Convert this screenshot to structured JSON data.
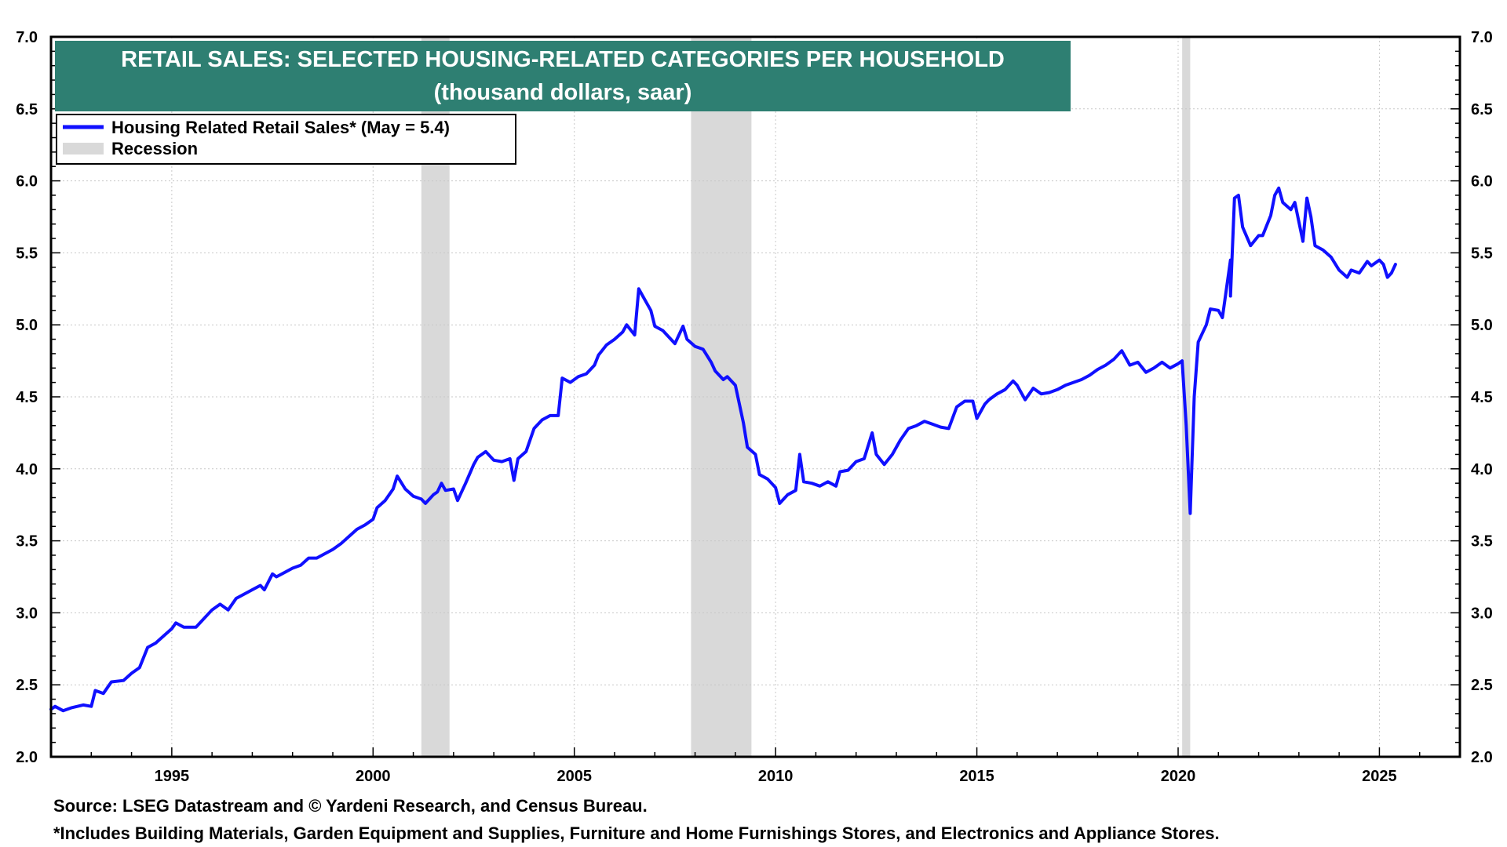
{
  "chart_data": {
    "type": "line",
    "title": "RETAIL SALES: SELECTED HOUSING-RELATED CATEGORIES PER HOUSEHOLD",
    "subtitle": "(thousand dollars, saar)",
    "xlabel": "",
    "ylabel": "",
    "xlim": [
      1992.0,
      2027.0
    ],
    "ylim": [
      2.0,
      7.0
    ],
    "x_ticks": [
      1995,
      2000,
      2005,
      2010,
      2015,
      2020,
      2025
    ],
    "y_ticks": [
      2.0,
      2.5,
      3.0,
      3.5,
      4.0,
      4.5,
      5.0,
      5.5,
      6.0,
      6.5,
      7.0
    ],
    "y_tick_labels": [
      "2.0",
      "2.5",
      "3.0",
      "3.5",
      "4.0",
      "4.5",
      "5.0",
      "5.5",
      "6.0",
      "6.5",
      "7.0"
    ],
    "grid": true,
    "legend_position": "top-left",
    "recession_label": "Recession",
    "recessions": [
      [
        2001.2,
        2001.9
      ],
      [
        2007.9,
        2009.4
      ],
      [
        2020.1,
        2020.3
      ]
    ],
    "series": [
      {
        "name": "Housing Related Retail Sales* (May = 5.4)",
        "color": "#1010ff",
        "points": [
          [
            1992.0,
            2.33
          ],
          [
            1992.1,
            2.35
          ],
          [
            1992.3,
            2.32
          ],
          [
            1992.5,
            2.34
          ],
          [
            1992.8,
            2.36
          ],
          [
            1993.0,
            2.35
          ],
          [
            1993.1,
            2.46
          ],
          [
            1993.3,
            2.44
          ],
          [
            1993.5,
            2.52
          ],
          [
            1993.8,
            2.53
          ],
          [
            1994.0,
            2.58
          ],
          [
            1994.2,
            2.62
          ],
          [
            1994.4,
            2.76
          ],
          [
            1994.6,
            2.79
          ],
          [
            1994.8,
            2.84
          ],
          [
            1995.0,
            2.89
          ],
          [
            1995.1,
            2.93
          ],
          [
            1995.3,
            2.9
          ],
          [
            1995.6,
            2.9
          ],
          [
            1995.8,
            2.96
          ],
          [
            1996.0,
            3.02
          ],
          [
            1996.2,
            3.06
          ],
          [
            1996.4,
            3.02
          ],
          [
            1996.6,
            3.1
          ],
          [
            1996.8,
            3.13
          ],
          [
            1997.0,
            3.16
          ],
          [
            1997.2,
            3.19
          ],
          [
            1997.3,
            3.16
          ],
          [
            1997.5,
            3.27
          ],
          [
            1997.6,
            3.25
          ],
          [
            1997.8,
            3.28
          ],
          [
            1998.0,
            3.31
          ],
          [
            1998.2,
            3.33
          ],
          [
            1998.4,
            3.38
          ],
          [
            1998.6,
            3.38
          ],
          [
            1998.8,
            3.41
          ],
          [
            1999.0,
            3.44
          ],
          [
            1999.2,
            3.48
          ],
          [
            1999.4,
            3.53
          ],
          [
            1999.6,
            3.58
          ],
          [
            1999.8,
            3.61
          ],
          [
            2000.0,
            3.65
          ],
          [
            2000.1,
            3.73
          ],
          [
            2000.3,
            3.78
          ],
          [
            2000.5,
            3.86
          ],
          [
            2000.6,
            3.95
          ],
          [
            2000.8,
            3.86
          ],
          [
            2001.0,
            3.81
          ],
          [
            2001.2,
            3.79
          ],
          [
            2001.3,
            3.76
          ],
          [
            2001.5,
            3.82
          ],
          [
            2001.6,
            3.84
          ],
          [
            2001.7,
            3.9
          ],
          [
            2001.8,
            3.85
          ],
          [
            2002.0,
            3.86
          ],
          [
            2002.1,
            3.78
          ],
          [
            2002.3,
            3.9
          ],
          [
            2002.5,
            4.03
          ],
          [
            2002.6,
            4.08
          ],
          [
            2002.8,
            4.12
          ],
          [
            2003.0,
            4.06
          ],
          [
            2003.2,
            4.05
          ],
          [
            2003.4,
            4.07
          ],
          [
            2003.5,
            3.92
          ],
          [
            2003.6,
            4.07
          ],
          [
            2003.8,
            4.12
          ],
          [
            2004.0,
            4.28
          ],
          [
            2004.2,
            4.34
          ],
          [
            2004.4,
            4.37
          ],
          [
            2004.6,
            4.37
          ],
          [
            2004.7,
            4.63
          ],
          [
            2004.9,
            4.6
          ],
          [
            2005.1,
            4.64
          ],
          [
            2005.3,
            4.66
          ],
          [
            2005.5,
            4.72
          ],
          [
            2005.6,
            4.79
          ],
          [
            2005.8,
            4.86
          ],
          [
            2006.0,
            4.9
          ],
          [
            2006.2,
            4.95
          ],
          [
            2006.3,
            5.0
          ],
          [
            2006.5,
            4.93
          ],
          [
            2006.6,
            5.25
          ],
          [
            2006.7,
            5.2
          ],
          [
            2006.9,
            5.1
          ],
          [
            2007.0,
            4.99
          ],
          [
            2007.2,
            4.96
          ],
          [
            2007.4,
            4.9
          ],
          [
            2007.5,
            4.87
          ],
          [
            2007.7,
            4.99
          ],
          [
            2007.8,
            4.9
          ],
          [
            2008.0,
            4.85
          ],
          [
            2008.2,
            4.83
          ],
          [
            2008.4,
            4.74
          ],
          [
            2008.5,
            4.68
          ],
          [
            2008.7,
            4.62
          ],
          [
            2008.8,
            4.64
          ],
          [
            2009.0,
            4.58
          ],
          [
            2009.2,
            4.32
          ],
          [
            2009.3,
            4.15
          ],
          [
            2009.5,
            4.1
          ],
          [
            2009.6,
            3.96
          ],
          [
            2009.8,
            3.93
          ],
          [
            2010.0,
            3.87
          ],
          [
            2010.1,
            3.76
          ],
          [
            2010.3,
            3.82
          ],
          [
            2010.5,
            3.85
          ],
          [
            2010.6,
            4.1
          ],
          [
            2010.7,
            3.91
          ],
          [
            2010.9,
            3.9
          ],
          [
            2011.1,
            3.88
          ],
          [
            2011.3,
            3.91
          ],
          [
            2011.5,
            3.88
          ],
          [
            2011.6,
            3.98
          ],
          [
            2011.8,
            3.99
          ],
          [
            2012.0,
            4.05
          ],
          [
            2012.2,
            4.07
          ],
          [
            2012.4,
            4.25
          ],
          [
            2012.5,
            4.1
          ],
          [
            2012.7,
            4.03
          ],
          [
            2012.9,
            4.1
          ],
          [
            2013.1,
            4.2
          ],
          [
            2013.3,
            4.28
          ],
          [
            2013.5,
            4.3
          ],
          [
            2013.7,
            4.33
          ],
          [
            2013.9,
            4.31
          ],
          [
            2014.1,
            4.29
          ],
          [
            2014.3,
            4.28
          ],
          [
            2014.5,
            4.43
          ],
          [
            2014.7,
            4.47
          ],
          [
            2014.9,
            4.47
          ],
          [
            2015.0,
            4.35
          ],
          [
            2015.2,
            4.45
          ],
          [
            2015.3,
            4.48
          ],
          [
            2015.5,
            4.52
          ],
          [
            2015.7,
            4.55
          ],
          [
            2015.9,
            4.61
          ],
          [
            2016.0,
            4.58
          ],
          [
            2016.2,
            4.48
          ],
          [
            2016.4,
            4.56
          ],
          [
            2016.6,
            4.52
          ],
          [
            2016.8,
            4.53
          ],
          [
            2017.0,
            4.55
          ],
          [
            2017.2,
            4.58
          ],
          [
            2017.4,
            4.6
          ],
          [
            2017.6,
            4.62
          ],
          [
            2017.8,
            4.65
          ],
          [
            2018.0,
            4.69
          ],
          [
            2018.2,
            4.72
          ],
          [
            2018.4,
            4.76
          ],
          [
            2018.6,
            4.82
          ],
          [
            2018.8,
            4.72
          ],
          [
            2019.0,
            4.74
          ],
          [
            2019.2,
            4.67
          ],
          [
            2019.4,
            4.7
          ],
          [
            2019.6,
            4.74
          ],
          [
            2019.8,
            4.7
          ],
          [
            2020.0,
            4.73
          ],
          [
            2020.1,
            4.75
          ],
          [
            2020.2,
            4.3
          ],
          [
            2020.3,
            3.69
          ],
          [
            2020.4,
            4.5
          ],
          [
            2020.5,
            4.88
          ],
          [
            2020.7,
            5.0
          ],
          [
            2020.8,
            5.11
          ],
          [
            2021.0,
            5.1
          ],
          [
            2021.1,
            5.05
          ],
          [
            2021.3,
            5.45
          ],
          [
            2021.3,
            5.2
          ],
          [
            2021.4,
            5.88
          ],
          [
            2021.5,
            5.9
          ],
          [
            2021.6,
            5.68
          ],
          [
            2021.8,
            5.55
          ],
          [
            2022.0,
            5.62
          ],
          [
            2022.1,
            5.62
          ],
          [
            2022.3,
            5.76
          ],
          [
            2022.4,
            5.9
          ],
          [
            2022.5,
            5.95
          ],
          [
            2022.6,
            5.85
          ],
          [
            2022.8,
            5.8
          ],
          [
            2022.9,
            5.85
          ],
          [
            2023.1,
            5.58
          ],
          [
            2023.2,
            5.88
          ],
          [
            2023.3,
            5.75
          ],
          [
            2023.4,
            5.55
          ],
          [
            2023.6,
            5.52
          ],
          [
            2023.8,
            5.47
          ],
          [
            2024.0,
            5.38
          ],
          [
            2024.2,
            5.33
          ],
          [
            2024.3,
            5.38
          ],
          [
            2024.5,
            5.36
          ],
          [
            2024.7,
            5.44
          ],
          [
            2024.8,
            5.41
          ],
          [
            2025.0,
            5.45
          ],
          [
            2025.1,
            5.42
          ],
          [
            2025.2,
            5.33
          ],
          [
            2025.3,
            5.36
          ],
          [
            2025.4,
            5.42
          ]
        ]
      }
    ]
  },
  "footer": {
    "source": "Source: LSEG Datastream and © Yardeni Research, and Census Bureau.",
    "note": "*Includes Building Materials, Garden Equipment and Supplies, Furniture and Home Furnishings Stores, and Electronics and Appliance Stores."
  }
}
